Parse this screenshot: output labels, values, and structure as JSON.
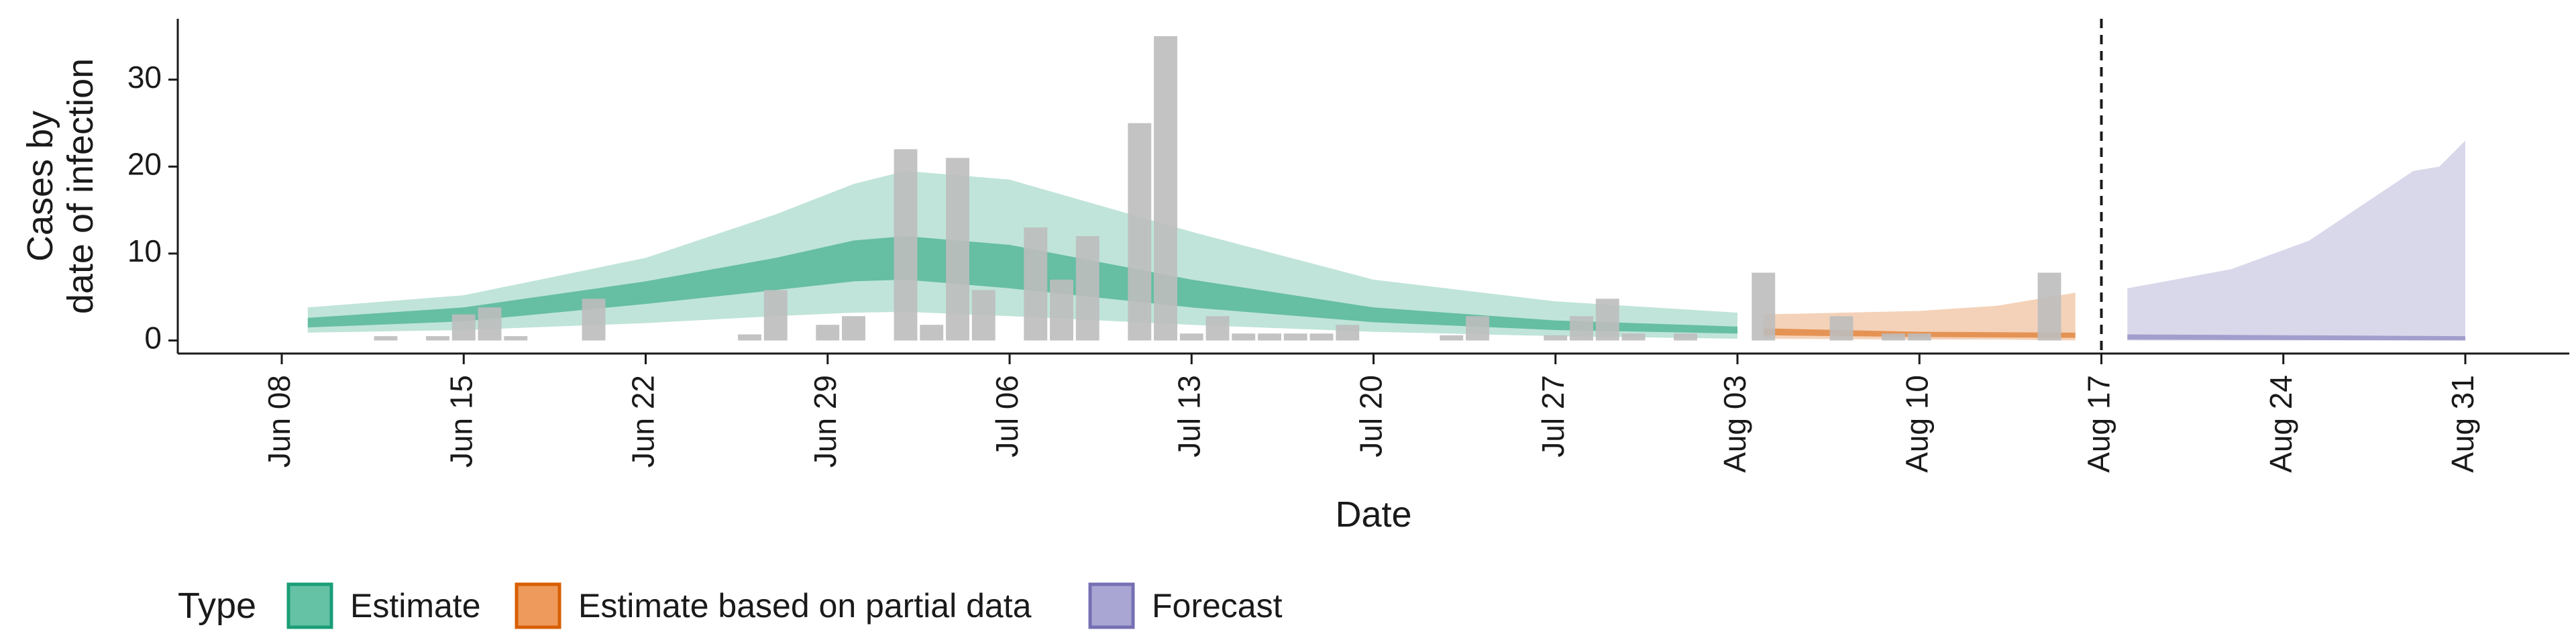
{
  "chart_data": {
    "type": "bar+ribbon",
    "xlabel": "Date",
    "ylabel": [
      "Cases by",
      "date of infection"
    ],
    "ylim": [
      -1.5,
      37
    ],
    "yticks": [
      0,
      10,
      20,
      30
    ],
    "xlim": [
      "2020-06-04",
      "2020-09-04"
    ],
    "xticks": [
      {
        "date": "2020-06-08",
        "label": "Jun 08"
      },
      {
        "date": "2020-06-15",
        "label": "Jun 15"
      },
      {
        "date": "2020-06-22",
        "label": "Jun 22"
      },
      {
        "date": "2020-06-29",
        "label": "Jun 29"
      },
      {
        "date": "2020-07-06",
        "label": "Jul 06"
      },
      {
        "date": "2020-07-13",
        "label": "Jul 13"
      },
      {
        "date": "2020-07-20",
        "label": "Jul 20"
      },
      {
        "date": "2020-07-27",
        "label": "Jul 27"
      },
      {
        "date": "2020-08-03",
        "label": "Aug 03"
      },
      {
        "date": "2020-08-10",
        "label": "Aug 10"
      },
      {
        "date": "2020-08-17",
        "label": "Aug 17"
      },
      {
        "date": "2020-08-24",
        "label": "Aug 24"
      },
      {
        "date": "2020-08-31",
        "label": "Aug 31"
      }
    ],
    "vline": "2020-08-17",
    "observed_cases": [
      {
        "date": "2020-06-12",
        "value": 0.5
      },
      {
        "date": "2020-06-14",
        "value": 0.5
      },
      {
        "date": "2020-06-15",
        "value": 3
      },
      {
        "date": "2020-06-16",
        "value": 3.8
      },
      {
        "date": "2020-06-17",
        "value": 0.5
      },
      {
        "date": "2020-06-20",
        "value": 4.8
      },
      {
        "date": "2020-06-26",
        "value": 0.7
      },
      {
        "date": "2020-06-27",
        "value": 5.8
      },
      {
        "date": "2020-06-29",
        "value": 1.8
      },
      {
        "date": "2020-06-30",
        "value": 2.8
      },
      {
        "date": "2020-07-02",
        "value": 22
      },
      {
        "date": "2020-07-03",
        "value": 1.8
      },
      {
        "date": "2020-07-04",
        "value": 21
      },
      {
        "date": "2020-07-05",
        "value": 5.8
      },
      {
        "date": "2020-07-07",
        "value": 13
      },
      {
        "date": "2020-07-08",
        "value": 7
      },
      {
        "date": "2020-07-09",
        "value": 12
      },
      {
        "date": "2020-07-11",
        "value": 25
      },
      {
        "date": "2020-07-12",
        "value": 35
      },
      {
        "date": "2020-07-13",
        "value": 0.8
      },
      {
        "date": "2020-07-14",
        "value": 2.8
      },
      {
        "date": "2020-07-15",
        "value": 0.8
      },
      {
        "date": "2020-07-16",
        "value": 0.8
      },
      {
        "date": "2020-07-17",
        "value": 0.8
      },
      {
        "date": "2020-07-18",
        "value": 0.8
      },
      {
        "date": "2020-07-19",
        "value": 1.8
      },
      {
        "date": "2020-07-23",
        "value": 0.6
      },
      {
        "date": "2020-07-24",
        "value": 2.8
      },
      {
        "date": "2020-07-27",
        "value": 0.6
      },
      {
        "date": "2020-07-28",
        "value": 2.8
      },
      {
        "date": "2020-07-29",
        "value": 4.8
      },
      {
        "date": "2020-07-30",
        "value": 0.8
      },
      {
        "date": "2020-08-01",
        "value": 0.8
      },
      {
        "date": "2020-08-04",
        "value": 7.8
      },
      {
        "date": "2020-08-07",
        "value": 2.8
      },
      {
        "date": "2020-08-09",
        "value": 0.8
      },
      {
        "date": "2020-08-10",
        "value": 0.8
      },
      {
        "date": "2020-08-15",
        "value": 7.8
      }
    ],
    "series": [
      {
        "name": "Estimate",
        "color": "#1b9e77",
        "band_outer": [
          {
            "date": "2020-06-09",
            "lo": 0.9,
            "hi": 3.8
          },
          {
            "date": "2020-06-15",
            "lo": 1.2,
            "hi": 5.2
          },
          {
            "date": "2020-06-22",
            "lo": 2.0,
            "hi": 9.5
          },
          {
            "date": "2020-06-27",
            "lo": 2.8,
            "hi": 14.5
          },
          {
            "date": "2020-06-30",
            "lo": 3.2,
            "hi": 18.0
          },
          {
            "date": "2020-07-02",
            "lo": 3.3,
            "hi": 19.5
          },
          {
            "date": "2020-07-06",
            "lo": 2.8,
            "hi": 18.5
          },
          {
            "date": "2020-07-13",
            "lo": 1.8,
            "hi": 12.5
          },
          {
            "date": "2020-07-20",
            "lo": 1.0,
            "hi": 7.0
          },
          {
            "date": "2020-07-27",
            "lo": 0.5,
            "hi": 4.5
          },
          {
            "date": "2020-08-03",
            "lo": 0.2,
            "hi": 3.2
          }
        ],
        "band_inner": [
          {
            "date": "2020-06-09",
            "lo": 1.5,
            "hi": 2.6
          },
          {
            "date": "2020-06-15",
            "lo": 2.2,
            "hi": 3.8
          },
          {
            "date": "2020-06-22",
            "lo": 4.2,
            "hi": 6.8
          },
          {
            "date": "2020-06-27",
            "lo": 5.8,
            "hi": 9.5
          },
          {
            "date": "2020-06-30",
            "lo": 6.8,
            "hi": 11.5
          },
          {
            "date": "2020-07-02",
            "lo": 7.0,
            "hi": 12.0
          },
          {
            "date": "2020-07-06",
            "lo": 6.0,
            "hi": 11.0
          },
          {
            "date": "2020-07-13",
            "lo": 3.8,
            "hi": 7.0
          },
          {
            "date": "2020-07-20",
            "lo": 2.1,
            "hi": 3.8
          },
          {
            "date": "2020-07-27",
            "lo": 1.2,
            "hi": 2.3
          },
          {
            "date": "2020-08-03",
            "lo": 0.8,
            "hi": 1.6
          }
        ]
      },
      {
        "name": "Estimate based on partial data",
        "color": "#d95f02",
        "band_outer": [
          {
            "date": "2020-08-04",
            "lo": 0.2,
            "hi": 3.0
          },
          {
            "date": "2020-08-10",
            "lo": 0.1,
            "hi": 3.4
          },
          {
            "date": "2020-08-13",
            "lo": 0.1,
            "hi": 4.0
          },
          {
            "date": "2020-08-16",
            "lo": 0.0,
            "hi": 5.5
          }
        ],
        "band_inner": [
          {
            "date": "2020-08-04",
            "lo": 0.6,
            "hi": 1.4
          },
          {
            "date": "2020-08-10",
            "lo": 0.4,
            "hi": 1.0
          },
          {
            "date": "2020-08-16",
            "lo": 0.3,
            "hi": 0.9
          }
        ]
      },
      {
        "name": "Forecast",
        "color": "#7570b3",
        "band_outer": [
          {
            "date": "2020-08-18",
            "lo": 0.0,
            "hi": 6.0
          },
          {
            "date": "2020-08-22",
            "lo": 0.0,
            "hi": 8.2
          },
          {
            "date": "2020-08-25",
            "lo": 0.0,
            "hi": 11.5
          },
          {
            "date": "2020-08-27",
            "lo": 0.0,
            "hi": 15.5
          },
          {
            "date": "2020-08-29",
            "lo": 0.0,
            "hi": 19.5
          },
          {
            "date": "2020-08-30",
            "lo": 0.0,
            "hi": 20.0
          },
          {
            "date": "2020-08-31",
            "lo": 0.0,
            "hi": 23.0
          }
        ],
        "band_inner": [
          {
            "date": "2020-08-18",
            "lo": 0.1,
            "hi": 0.7
          },
          {
            "date": "2020-08-31",
            "lo": 0.0,
            "hi": 0.5
          }
        ]
      }
    ],
    "legend": {
      "title": "Type",
      "placement": "bottom-left",
      "entries": [
        {
          "label": "Estimate",
          "fill": "#66c2a5",
          "stroke": "#1b9e77"
        },
        {
          "label": "Estimate based on partial data",
          "fill": "#ee9a5c",
          "stroke": "#d95f02"
        },
        {
          "label": "Forecast",
          "fill": "#a9a6d3",
          "stroke": "#7570b3"
        }
      ]
    },
    "colors": {
      "bars": "#bdbdbd",
      "axis": "#1a1a1a",
      "vline": "#1a1a1a"
    }
  }
}
